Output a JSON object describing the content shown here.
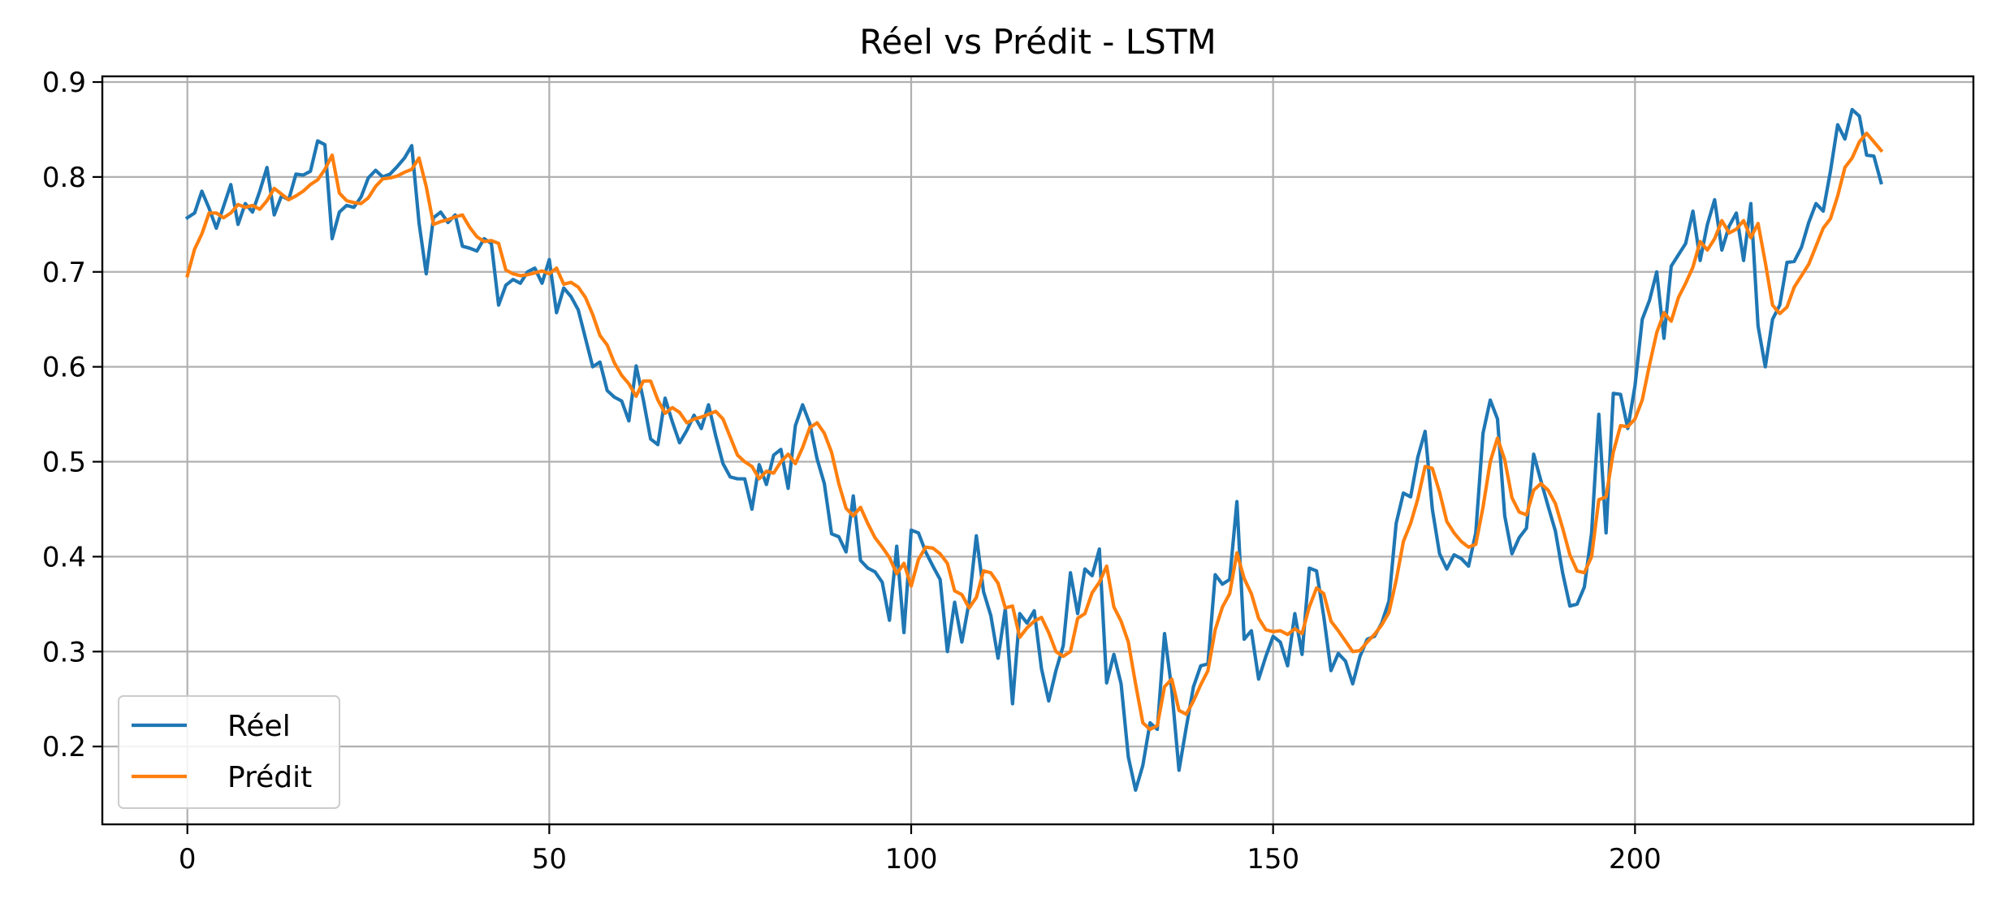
{
  "chart_data": {
    "type": "line",
    "title": "Réel vs Prédit - LSTM",
    "xlabel": "",
    "ylabel": "",
    "xlim": [
      -11.75,
      246.75
    ],
    "ylim": [
      0.118,
      0.906
    ],
    "xticks": [
      0,
      50,
      100,
      150,
      200
    ],
    "xtick_labels": [
      "0",
      "50",
      "100",
      "150",
      "200"
    ],
    "yticks": [
      0.2,
      0.3,
      0.4,
      0.5,
      0.6,
      0.7,
      0.8,
      0.9
    ],
    "ytick_labels": [
      "0.2",
      "0.3",
      "0.4",
      "0.5",
      "0.6",
      "0.7",
      "0.8",
      "0.9"
    ],
    "grid": true,
    "legend_position": "lower-left",
    "series": [
      {
        "name": "Réel",
        "color": "#1f77b4",
        "values": [
          0.757,
          0.762,
          0.785,
          0.767,
          0.746,
          0.769,
          0.792,
          0.75,
          0.772,
          0.763,
          0.785,
          0.81,
          0.76,
          0.78,
          0.776,
          0.803,
          0.802,
          0.806,
          0.838,
          0.834,
          0.735,
          0.763,
          0.77,
          0.768,
          0.779,
          0.799,
          0.807,
          0.8,
          0.803,
          0.811,
          0.82,
          0.833,
          0.752,
          0.698,
          0.757,
          0.763,
          0.752,
          0.76,
          0.727,
          0.725,
          0.722,
          0.735,
          0.73,
          0.665,
          0.686,
          0.692,
          0.688,
          0.7,
          0.704,
          0.688,
          0.713,
          0.657,
          0.683,
          0.674,
          0.66,
          0.63,
          0.6,
          0.605,
          0.575,
          0.568,
          0.564,
          0.543,
          0.601,
          0.565,
          0.524,
          0.518,
          0.567,
          0.542,
          0.52,
          0.533,
          0.549,
          0.535,
          0.56,
          0.527,
          0.498,
          0.484,
          0.482,
          0.482,
          0.45,
          0.497,
          0.476,
          0.507,
          0.513,
          0.472,
          0.538,
          0.56,
          0.54,
          0.503,
          0.477,
          0.424,
          0.421,
          0.405,
          0.464,
          0.396,
          0.388,
          0.384,
          0.373,
          0.333,
          0.411,
          0.32,
          0.428,
          0.425,
          0.405,
          0.39,
          0.376,
          0.3,
          0.352,
          0.31,
          0.352,
          0.422,
          0.363,
          0.338,
          0.293,
          0.345,
          0.245,
          0.34,
          0.33,
          0.343,
          0.282,
          0.248,
          0.28,
          0.306,
          0.383,
          0.34,
          0.387,
          0.38,
          0.408,
          0.267,
          0.297,
          0.266,
          0.189,
          0.154,
          0.18,
          0.225,
          0.218,
          0.319,
          0.26,
          0.175,
          0.22,
          0.263,
          0.285,
          0.287,
          0.381,
          0.371,
          0.376,
          0.458,
          0.313,
          0.322,
          0.271,
          0.295,
          0.316,
          0.31,
          0.285,
          0.34,
          0.297,
          0.388,
          0.385,
          0.337,
          0.28,
          0.298,
          0.29,
          0.266,
          0.295,
          0.313,
          0.316,
          0.33,
          0.353,
          0.435,
          0.467,
          0.463,
          0.505,
          0.532,
          0.45,
          0.403,
          0.387,
          0.402,
          0.398,
          0.39,
          0.425,
          0.53,
          0.565,
          0.545,
          0.443,
          0.403,
          0.42,
          0.43,
          0.508,
          0.48,
          0.453,
          0.427,
          0.383,
          0.348,
          0.35,
          0.368,
          0.425,
          0.55,
          0.425,
          0.572,
          0.571,
          0.535,
          0.58,
          0.65,
          0.67,
          0.7,
          0.63,
          0.706,
          0.718,
          0.73,
          0.764,
          0.712,
          0.75,
          0.776,
          0.723,
          0.748,
          0.762,
          0.712,
          0.772,
          0.643,
          0.6,
          0.65,
          0.665,
          0.71,
          0.711,
          0.726,
          0.752,
          0.772,
          0.764,
          0.806,
          0.855,
          0.84,
          0.871,
          0.864,
          0.823,
          0.822,
          0.794
        ]
      },
      {
        "name": "Prédit",
        "color": "#ff7f0e",
        "values": [
          0.696,
          0.724,
          0.74,
          0.762,
          0.762,
          0.757,
          0.762,
          0.771,
          0.768,
          0.77,
          0.766,
          0.775,
          0.788,
          0.782,
          0.776,
          0.78,
          0.785,
          0.792,
          0.797,
          0.808,
          0.823,
          0.783,
          0.775,
          0.773,
          0.772,
          0.778,
          0.79,
          0.798,
          0.799,
          0.801,
          0.805,
          0.808,
          0.82,
          0.79,
          0.75,
          0.753,
          0.755,
          0.758,
          0.76,
          0.747,
          0.737,
          0.732,
          0.733,
          0.73,
          0.702,
          0.698,
          0.696,
          0.697,
          0.699,
          0.701,
          0.698,
          0.704,
          0.687,
          0.689,
          0.684,
          0.673,
          0.655,
          0.633,
          0.623,
          0.604,
          0.591,
          0.582,
          0.569,
          0.585,
          0.585,
          0.565,
          0.551,
          0.557,
          0.552,
          0.541,
          0.545,
          0.547,
          0.55,
          0.553,
          0.545,
          0.526,
          0.507,
          0.5,
          0.495,
          0.482,
          0.49,
          0.488,
          0.5,
          0.508,
          0.498,
          0.515,
          0.536,
          0.541,
          0.53,
          0.51,
          0.477,
          0.451,
          0.443,
          0.452,
          0.435,
          0.42,
          0.41,
          0.399,
          0.382,
          0.393,
          0.369,
          0.397,
          0.41,
          0.409,
          0.403,
          0.393,
          0.364,
          0.36,
          0.346,
          0.357,
          0.385,
          0.383,
          0.372,
          0.346,
          0.348,
          0.315,
          0.325,
          0.332,
          0.336,
          0.32,
          0.3,
          0.295,
          0.3,
          0.335,
          0.34,
          0.362,
          0.373,
          0.39,
          0.347,
          0.332,
          0.31,
          0.266,
          0.225,
          0.218,
          0.222,
          0.263,
          0.271,
          0.238,
          0.234,
          0.248,
          0.265,
          0.28,
          0.323,
          0.347,
          0.361,
          0.404,
          0.377,
          0.361,
          0.335,
          0.323,
          0.321,
          0.322,
          0.318,
          0.324,
          0.319,
          0.347,
          0.367,
          0.361,
          0.332,
          0.322,
          0.311,
          0.3,
          0.301,
          0.31,
          0.318,
          0.328,
          0.341,
          0.375,
          0.416,
          0.435,
          0.461,
          0.495,
          0.493,
          0.468,
          0.437,
          0.425,
          0.416,
          0.41,
          0.413,
          0.452,
          0.5,
          0.525,
          0.502,
          0.462,
          0.447,
          0.444,
          0.47,
          0.477,
          0.47,
          0.456,
          0.43,
          0.402,
          0.385,
          0.383,
          0.4,
          0.46,
          0.463,
          0.51,
          0.538,
          0.537,
          0.545,
          0.565,
          0.602,
          0.636,
          0.657,
          0.648,
          0.673,
          0.688,
          0.705,
          0.732,
          0.723,
          0.735,
          0.754,
          0.741,
          0.745,
          0.754,
          0.736,
          0.751,
          0.71,
          0.665,
          0.656,
          0.663,
          0.684,
          0.696,
          0.708,
          0.727,
          0.746,
          0.756,
          0.78,
          0.81,
          0.82,
          0.837,
          0.846,
          0.837,
          0.828
        ]
      }
    ]
  }
}
